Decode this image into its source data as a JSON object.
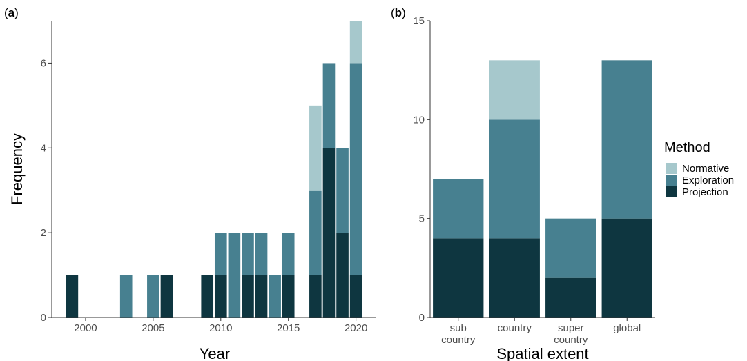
{
  "colors": {
    "Normative": "#a6c8cc",
    "Exploration": "#478090",
    "Projection": "#0e3640",
    "axis": "#333333",
    "tick_text": "#4d4d4d"
  },
  "legend": {
    "title": "Method",
    "entries": [
      "Normative",
      "Exploration",
      "Projection"
    ],
    "placement": "right"
  },
  "chart_data": [
    {
      "panel": "(a)",
      "panel_letter": "a",
      "type": "bar",
      "stacked": true,
      "xlabel": "Year",
      "ylabel": "Frequency",
      "xlim": [
        1997.5,
        2021.5
      ],
      "ylim": [
        0,
        7
      ],
      "x_ticks": [
        2000,
        2005,
        2010,
        2015,
        2020
      ],
      "y_ticks": [
        0,
        2,
        4,
        6
      ],
      "x_tick_labels": [
        "2000",
        "2005",
        "2010",
        "2015",
        "2020"
      ],
      "y_tick_labels": [
        "0",
        "2",
        "4",
        "6"
      ],
      "x": [
        1999,
        2003,
        2005,
        2006,
        2009,
        2010,
        2011,
        2012,
        2013,
        2014,
        2015,
        2017,
        2018,
        2019,
        2020
      ],
      "series": [
        {
          "name": "Projection",
          "values": [
            1,
            0,
            0,
            1,
            1,
            1,
            0,
            1,
            1,
            0,
            1,
            1,
            4,
            2,
            1
          ]
        },
        {
          "name": "Exploration",
          "values": [
            0,
            1,
            1,
            0,
            0,
            1,
            2,
            1,
            1,
            1,
            1,
            2,
            2,
            2,
            5
          ]
        },
        {
          "name": "Normative",
          "values": [
            0,
            0,
            0,
            0,
            0,
            0,
            0,
            0,
            0,
            0,
            0,
            2,
            0,
            0,
            1
          ]
        }
      ],
      "grid": false
    },
    {
      "panel": "(b)",
      "panel_letter": "b",
      "type": "bar",
      "stacked": true,
      "xlabel": "Spatial extent",
      "ylabel": "",
      "ylim": [
        0,
        15
      ],
      "y_ticks": [
        0,
        5,
        10,
        15
      ],
      "y_tick_labels": [
        "0",
        "5",
        "10",
        "15"
      ],
      "categories": [
        [
          "sub",
          "country"
        ],
        [
          "country"
        ],
        [
          "super",
          "country"
        ],
        [
          "global"
        ]
      ],
      "series": [
        {
          "name": "Projection",
          "values": [
            4,
            4,
            2,
            5
          ]
        },
        {
          "name": "Exploration",
          "values": [
            3,
            6,
            3,
            8
          ]
        },
        {
          "name": "Normative",
          "values": [
            0,
            3,
            0,
            0
          ]
        }
      ],
      "grid": false
    }
  ]
}
